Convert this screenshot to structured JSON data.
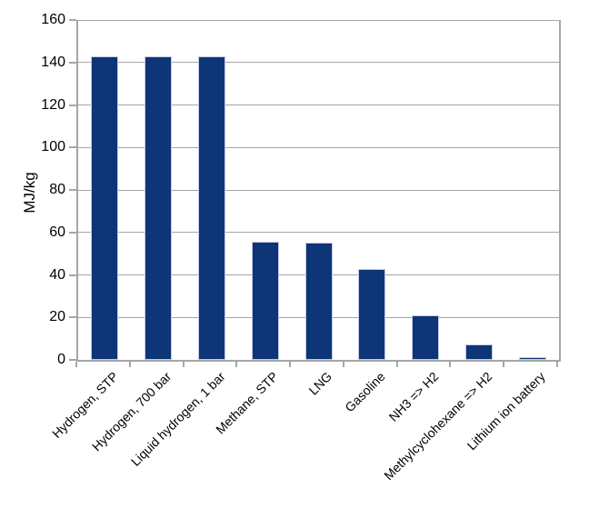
{
  "chart_data": {
    "type": "bar",
    "title": "",
    "xlabel": "",
    "ylabel": "MJ/kg",
    "categories": [
      "Hydrogen, STP",
      "Hydrogen, 700 bar",
      "Liquid hydrogen, 1 bar",
      "Methane, STP",
      "LNG",
      "Gasoline",
      "NH3 => H2",
      "Methylcyclohexane => H2",
      "Lithium ion battery"
    ],
    "values": [
      143,
      143,
      143,
      55.5,
      55,
      43,
      21,
      7.4,
      1.2
    ],
    "ylim": [
      0,
      160
    ],
    "yticks": [
      0,
      20,
      40,
      60,
      80,
      100,
      120,
      140,
      160
    ],
    "grid": true,
    "legend_position": "none",
    "x_label_rotation_deg": 45,
    "colors": {
      "bar_fill": "#0d3577",
      "bar_border": "#c2cbe4",
      "grid": "#a6a6a6",
      "axis": "#a6a6a6",
      "text": "#000000",
      "background": "#ffffff"
    }
  }
}
